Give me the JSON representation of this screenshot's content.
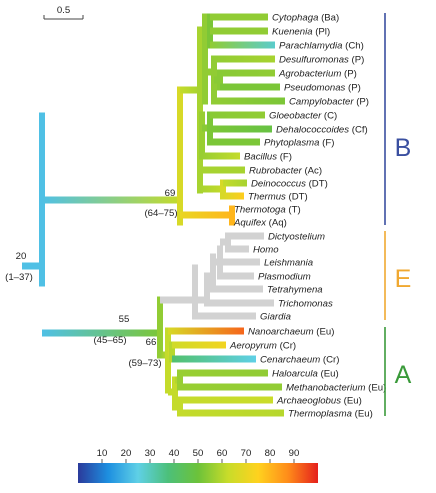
{
  "scale_bar": {
    "label": "0.5"
  },
  "taxa": [
    {
      "id": "t1",
      "name": "Cytophaga",
      "code": "(Ba)"
    },
    {
      "id": "t2",
      "name": "Kuenenia",
      "code": "(Pl)"
    },
    {
      "id": "t3",
      "name": "Parachlamydia",
      "code": "(Ch)"
    },
    {
      "id": "t4",
      "name": "Desulfuromonas",
      "code": "(P)"
    },
    {
      "id": "t5",
      "name": "Agrobacterium",
      "code": "(P)"
    },
    {
      "id": "t6",
      "name": "Pseudomonas",
      "code": "(P)"
    },
    {
      "id": "t7",
      "name": "Campylobacter",
      "code": "(P)"
    },
    {
      "id": "t8",
      "name": "Gloeobacter",
      "code": "(C)"
    },
    {
      "id": "t9",
      "name": "Dehalococcoides",
      "code": "(Cf)"
    },
    {
      "id": "t10",
      "name": "Phytoplasma",
      "code": "(F)"
    },
    {
      "id": "t11",
      "name": "Bacillus",
      "code": "(F)"
    },
    {
      "id": "t12",
      "name": "Rubrobacter",
      "code": "(Ac)"
    },
    {
      "id": "t13",
      "name": "Deinococcus",
      "code": "(DT)"
    },
    {
      "id": "t14",
      "name": "Thermus",
      "code": "(DT)"
    },
    {
      "id": "t15",
      "name": "Thermotoga",
      "code": "(T)"
    },
    {
      "id": "t16",
      "name": "Aquifex",
      "code": "(Aq)"
    },
    {
      "id": "t17",
      "name": "Dictyostelium",
      "code": ""
    },
    {
      "id": "t18",
      "name": "Homo",
      "code": ""
    },
    {
      "id": "t19",
      "name": "Leishmania",
      "code": ""
    },
    {
      "id": "t20",
      "name": "Plasmodium",
      "code": ""
    },
    {
      "id": "t21",
      "name": "Tetrahymena",
      "code": ""
    },
    {
      "id": "t22",
      "name": "Trichomonas",
      "code": ""
    },
    {
      "id": "t23",
      "name": "Giardia",
      "code": ""
    },
    {
      "id": "t24",
      "name": "Nanoarchaeum",
      "code": "(Eu)"
    },
    {
      "id": "t25",
      "name": "Aeropyrum",
      "code": "(Cr)"
    },
    {
      "id": "t26",
      "name": "Cenarchaeum",
      "code": "(Cr)"
    },
    {
      "id": "t27",
      "name": "Haloarcula",
      "code": "(Eu)"
    },
    {
      "id": "t28",
      "name": "Methanobacterium",
      "code": "(Eu)"
    },
    {
      "id": "t29",
      "name": "Archaeoglobus",
      "code": "(Eu)"
    },
    {
      "id": "t30",
      "name": "Thermoplasma",
      "code": "(Eu)"
    }
  ],
  "node_labels": [
    {
      "id": "root",
      "value": "20",
      "range": "(1–37)"
    },
    {
      "id": "bacteria",
      "value": "69",
      "range": "(64–75)"
    },
    {
      "id": "archaea_eukarya",
      "value": "55",
      "range": "(45–65)"
    },
    {
      "id": "archaea",
      "value": "66",
      "range": "(59–73)"
    }
  ],
  "groups": [
    {
      "id": "B",
      "label": "B",
      "color": "#3a4fa0"
    },
    {
      "id": "E",
      "label": "E",
      "color": "#f0a830"
    },
    {
      "id": "A",
      "label": "A",
      "color": "#3a9a3a"
    }
  ],
  "colorbar": {
    "ticks": [
      "10",
      "20",
      "30",
      "40",
      "50",
      "60",
      "70",
      "80",
      "90"
    ],
    "stops": [
      "#2b3a9b",
      "#1d8fe0",
      "#5fd0e6",
      "#4cc07a",
      "#6cc23a",
      "#c8dc2a",
      "#ffd21e",
      "#ff8c1a",
      "#e5201c"
    ]
  },
  "colors": {
    "eukarya_branch": "#d2d2d2",
    "group_line": "#9a9a9a"
  }
}
